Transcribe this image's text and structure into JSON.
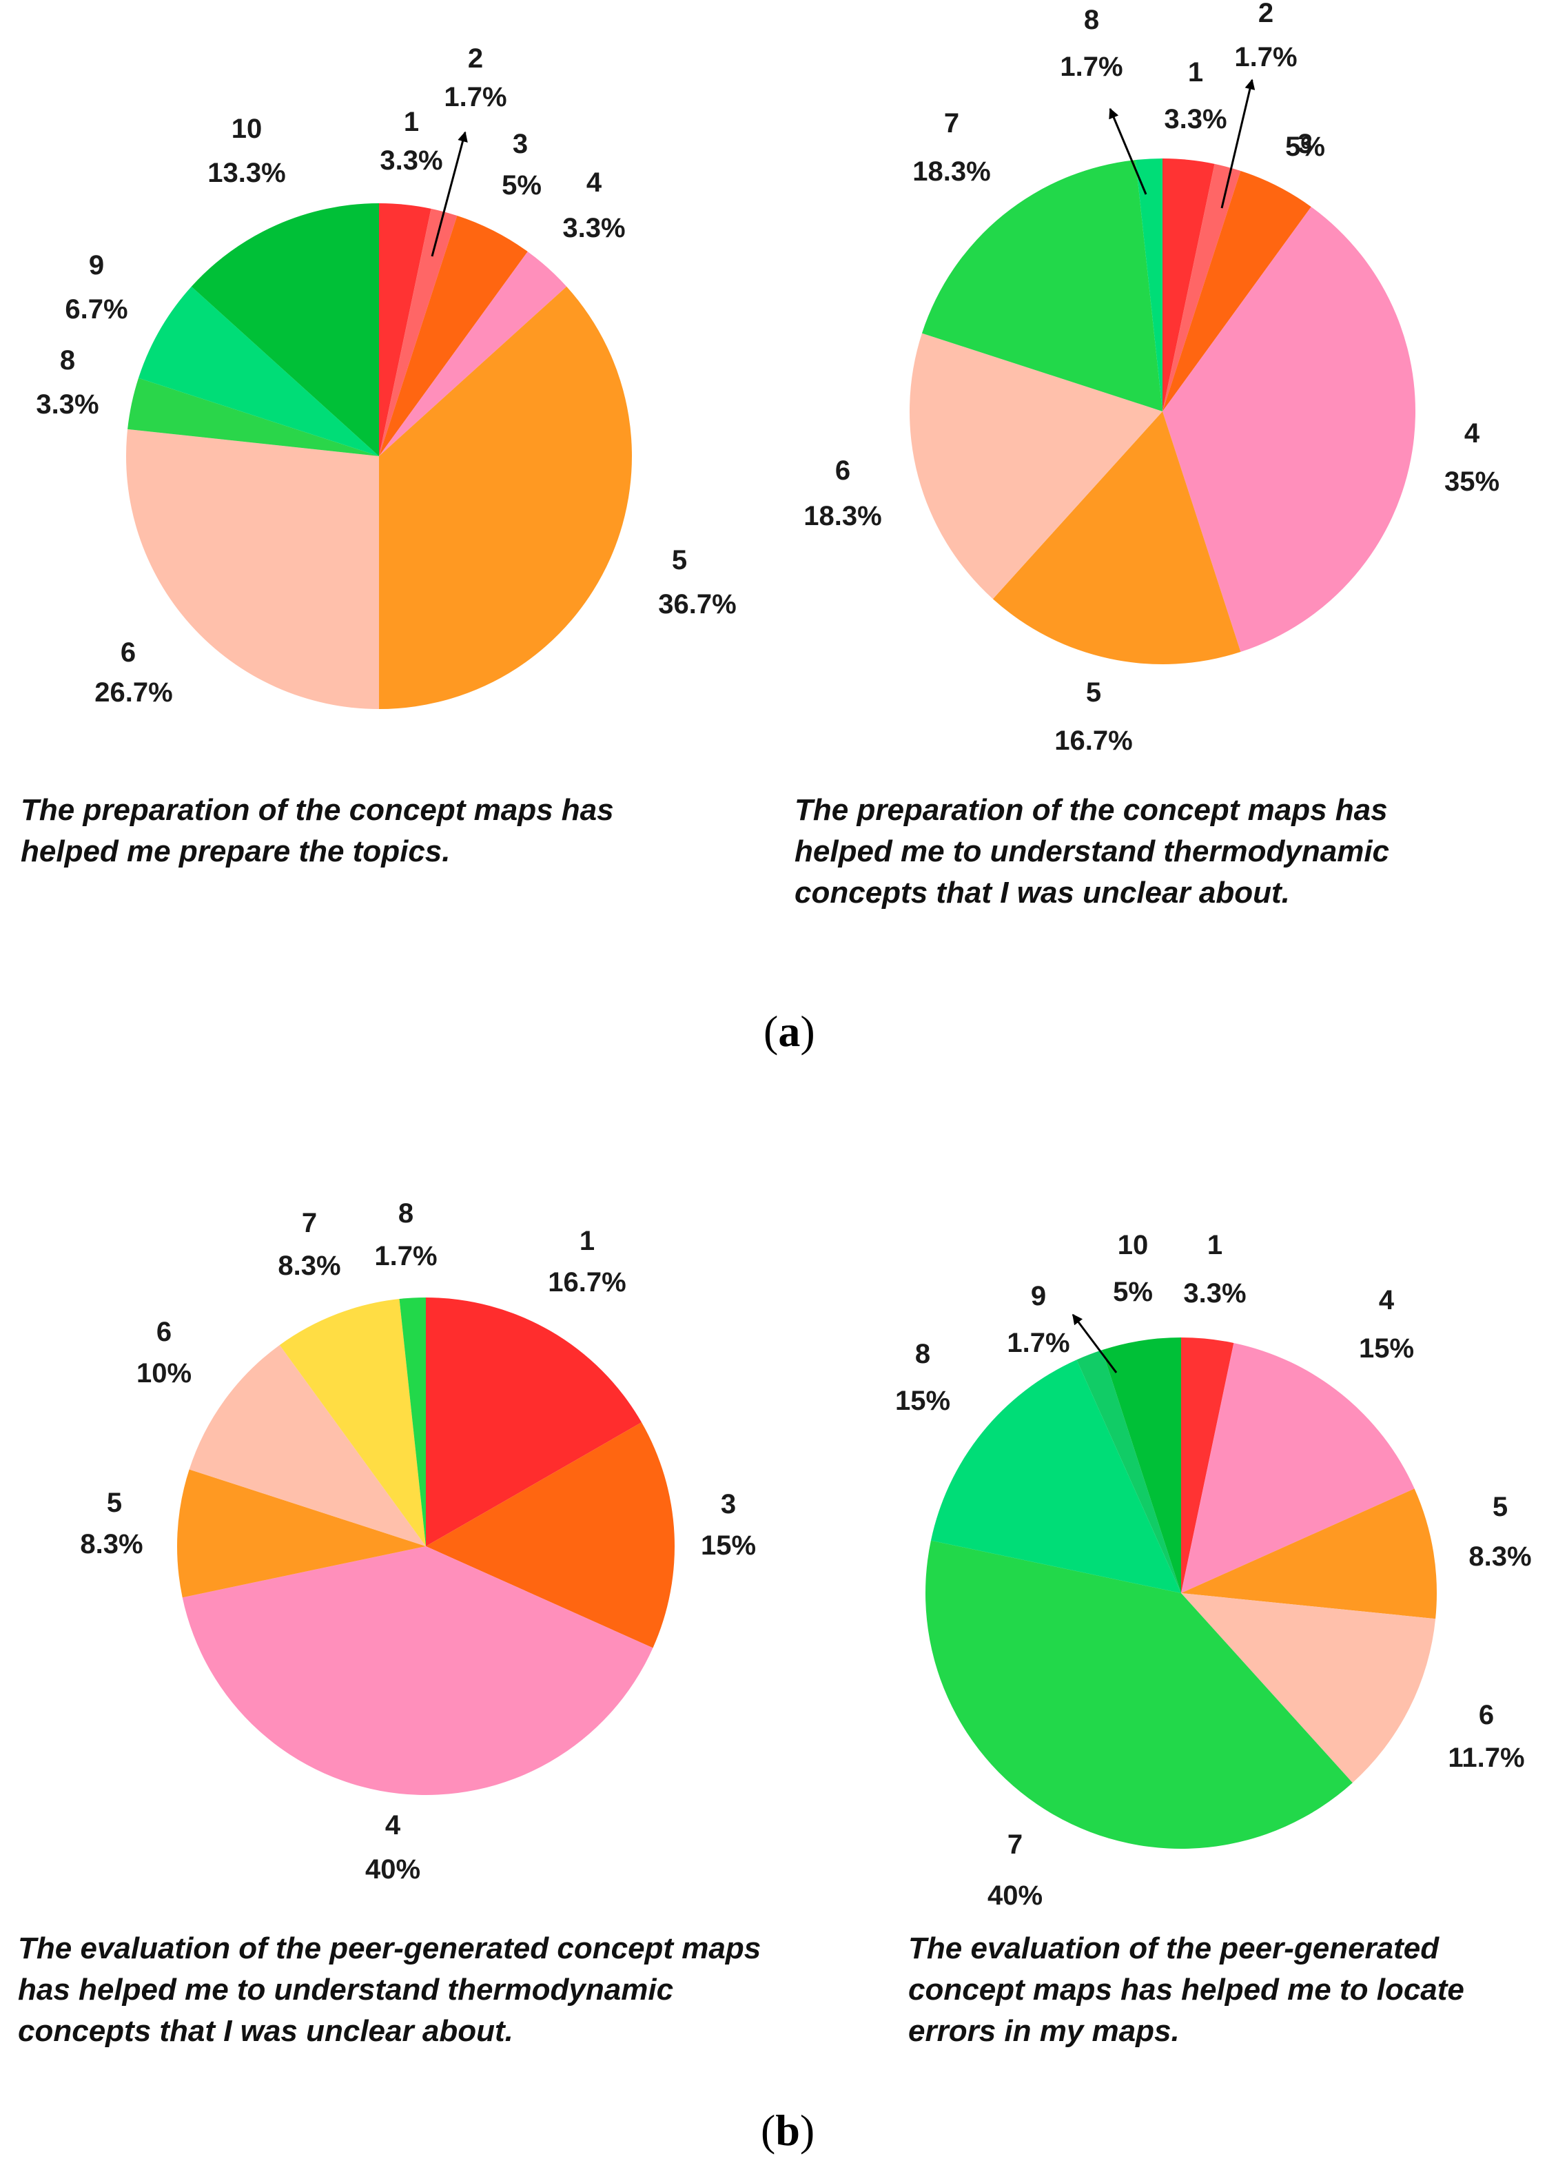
{
  "chart_data": [
    {
      "type": "pie",
      "categories": [
        "1",
        "2",
        "3",
        "4",
        "5",
        "6",
        "8",
        "9",
        "10"
      ],
      "values": [
        3.3,
        1.7,
        5,
        3.3,
        36.7,
        26.7,
        3.3,
        6.7,
        13.3
      ],
      "labels": [
        "3.3%",
        "1.7%",
        "5%",
        "3.3%",
        "36.7%",
        "26.7%",
        "3.3%",
        "6.7%",
        "13.3%"
      ],
      "colors": [
        "#ff3333",
        "#ff6666",
        "#ff6611",
        "#ff8fbb",
        "#ff9922",
        "#ffc0ab",
        "#2ad64a",
        "#00dd77",
        "#00c037"
      ],
      "caption": [
        "The preparation of the concept maps has",
        "helped me prepare the topics."
      ]
    },
    {
      "type": "pie",
      "categories": [
        "1",
        "2",
        "3",
        "4",
        "5",
        "6",
        "7",
        "8"
      ],
      "values": [
        3.3,
        1.7,
        5,
        35,
        16.7,
        18.3,
        18.3,
        1.7
      ],
      "labels": [
        "3.3%",
        "1.7%",
        "5%",
        "35%",
        "16.7%",
        "18.3%",
        "18.3%",
        "1.7%"
      ],
      "colors": [
        "#ff3333",
        "#ff6666",
        "#ff6611",
        "#ff8fbb",
        "#ff9922",
        "#ffc0ab",
        "#22d84a",
        "#00dd77"
      ],
      "caption": [
        "The preparation of the concept maps has",
        "helped me to understand thermodynamic",
        "concepts that I was unclear about."
      ]
    },
    {
      "type": "pie",
      "categories": [
        "1",
        "3",
        "4",
        "5",
        "6",
        "7",
        "8"
      ],
      "values": [
        16.7,
        15,
        40,
        8.3,
        10,
        8.3,
        1.7
      ],
      "labels": [
        "16.7%",
        "15%",
        "40%",
        "8.3%",
        "10%",
        "8.3%",
        "1.7%"
      ],
      "colors": [
        "#ff2d2d",
        "#ff6611",
        "#ff8fbb",
        "#ff9922",
        "#ffc0ab",
        "#ffdd44",
        "#22d84a"
      ],
      "caption": [
        "The evaluation of the peer-generated concept maps",
        "has helped me to understand thermodynamic",
        "concepts that I was unclear about."
      ]
    },
    {
      "type": "pie",
      "categories": [
        "1",
        "4",
        "5",
        "6",
        "7",
        "8",
        "9",
        "10"
      ],
      "values": [
        3.3,
        15,
        8.3,
        11.7,
        40,
        15,
        1.7,
        5
      ],
      "labels": [
        "3.3%",
        "15%",
        "8.3%",
        "11.7%",
        "40%",
        "15%",
        "1.7%",
        "5%"
      ],
      "colors": [
        "#ff3333",
        "#ff8fbb",
        "#ff9922",
        "#ffc0ab",
        "#22d84a",
        "#00dd77",
        "#11cc66",
        "#00c037"
      ],
      "caption": [
        "The evaluation of the peer-generated",
        "concept maps has helped me to locate",
        "errors in my maps."
      ]
    }
  ],
  "panels": {
    "a": {
      "open": "(",
      "letter": "a",
      "close": ")"
    },
    "b": {
      "open": "(",
      "letter": "b",
      "close": ")"
    }
  }
}
